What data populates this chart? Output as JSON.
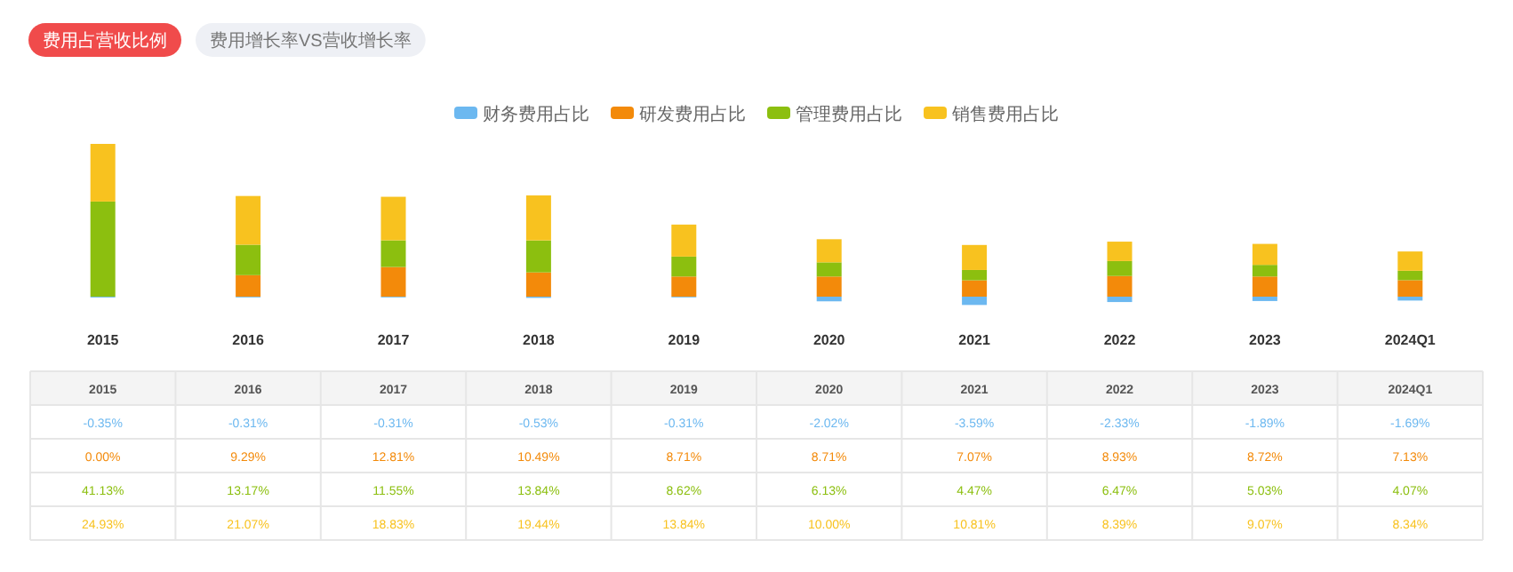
{
  "chart_data": {
    "type": "bar",
    "stacked": true,
    "legend": "top",
    "annotations": [
      "费用占营收比例",
      "费用增长率VS营收增长率"
    ],
    "categories": [
      "2015",
      "2016",
      "2017",
      "2018",
      "2019",
      "2020",
      "2021",
      "2022",
      "2023",
      "2024Q1"
    ],
    "series": [
      {
        "name": "财务费用占比",
        "color": "#6cb8f0",
        "values": [
          -0.35,
          -0.31,
          -0.31,
          -0.53,
          -0.31,
          -2.02,
          -3.59,
          -2.33,
          -1.89,
          -1.69
        ],
        "value_labels": [
          "-0.35%",
          "-0.31%",
          "-0.31%",
          "-0.53%",
          "-0.31%",
          "-2.02%",
          "-3.59%",
          "-2.33%",
          "-1.89%",
          "-1.69%"
        ]
      },
      {
        "name": "研发费用占比",
        "color": "#f38a0a",
        "values": [
          0.0,
          9.29,
          12.81,
          10.49,
          8.71,
          8.71,
          7.07,
          8.93,
          8.72,
          7.13
        ],
        "value_labels": [
          "0.00%",
          "9.29%",
          "12.81%",
          "10.49%",
          "8.71%",
          "8.71%",
          "7.07%",
          "8.93%",
          "8.72%",
          "7.13%"
        ]
      },
      {
        "name": "管理费用占比",
        "color": "#8cbf0f",
        "values": [
          41.13,
          13.17,
          11.55,
          13.84,
          8.62,
          6.13,
          4.47,
          6.47,
          5.03,
          4.07
        ],
        "value_labels": [
          "41.13%",
          "13.17%",
          "11.55%",
          "13.84%",
          "8.62%",
          "6.13%",
          "4.47%",
          "6.47%",
          "5.03%",
          "4.07%"
        ]
      },
      {
        "name": "销售费用占比",
        "color": "#f8c21f",
        "values": [
          24.93,
          21.07,
          18.83,
          19.44,
          13.84,
          10.0,
          10.81,
          8.39,
          9.07,
          8.34
        ],
        "value_labels": [
          "24.93%",
          "21.07%",
          "18.83%",
          "19.44%",
          "13.84%",
          "10.00%",
          "10.81%",
          "8.39%",
          "9.07%",
          "8.34%"
        ]
      }
    ]
  }
}
